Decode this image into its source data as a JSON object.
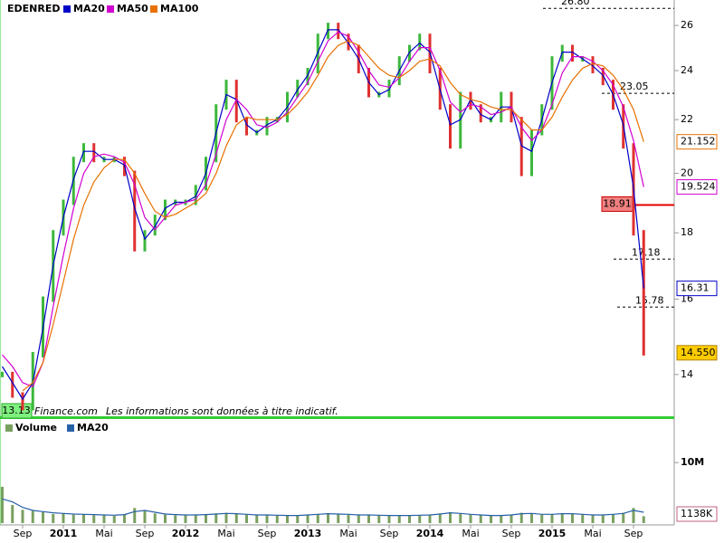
{
  "chart_data": [
    {
      "type": "line",
      "log_scale": true,
      "ylim": [
        13,
        27.2
      ],
      "yticks": [
        14,
        16,
        18,
        20,
        22,
        24,
        26
      ],
      "series": [
        {
          "name": "EDENRED",
          "color": "#3cb83c",
          "down_color": "#e03030",
          "style": "bars",
          "last_label": "14.550",
          "values": [
            14,
            13.5,
            13.2,
            14.5,
            16,
            18,
            19,
            20.5,
            21,
            20.5,
            20.5,
            20.5,
            20,
            17.5,
            18,
            18.5,
            19,
            19,
            19,
            19.5,
            20.5,
            22.5,
            23.5,
            22,
            21.5,
            21.5,
            22,
            22,
            23,
            23.5,
            24,
            25.5,
            26,
            25.5,
            25,
            24,
            23,
            23,
            23.5,
            24.5,
            25,
            25.5,
            24,
            22.5,
            21,
            23,
            22.5,
            22,
            22,
            23,
            22,
            20,
            21.5,
            22.5,
            24.5,
            25,
            24.5,
            24.5,
            24,
            23.5,
            22.5,
            21,
            18,
            14.55
          ]
        },
        {
          "name": "MA20",
          "color": "#0000c8",
          "values": [
            14.2,
            13.8,
            13.4,
            13.8,
            15.2,
            17,
            18.5,
            19.8,
            20.8,
            20.8,
            20.5,
            20.5,
            20.3,
            18.8,
            17.8,
            18.2,
            18.8,
            19,
            19,
            19.2,
            20,
            21.5,
            23,
            22.8,
            21.8,
            21.5,
            21.8,
            22,
            22.5,
            23.2,
            23.8,
            24.8,
            25.8,
            25.8,
            25.2,
            24.5,
            23.5,
            23,
            23.2,
            24,
            24.8,
            25.2,
            24.8,
            23.2,
            21.8,
            22,
            22.8,
            22.2,
            22,
            22.5,
            22.5,
            21,
            20.8,
            22,
            23.5,
            24.8,
            24.8,
            24.5,
            24.2,
            23.8,
            23,
            21.8,
            19.5,
            16.31
          ]
        },
        {
          "name": "MA50",
          "color": "#d000d0",
          "values": [
            14.5,
            14.2,
            13.8,
            13.7,
            14.3,
            15.8,
            17.3,
            18.8,
            20,
            20.6,
            20.7,
            20.6,
            20.4,
            19.6,
            18.5,
            18.1,
            18.5,
            18.9,
            19,
            19.1,
            19.6,
            20.7,
            22,
            22.8,
            22.4,
            21.8,
            21.7,
            21.9,
            22.3,
            22.9,
            23.5,
            24.4,
            25.3,
            25.7,
            25.5,
            24.8,
            24,
            23.4,
            23.3,
            23.7,
            24.4,
            25,
            25,
            24,
            22.7,
            22.3,
            22.6,
            22.5,
            22.2,
            22.3,
            22.5,
            21.7,
            21.2,
            21.6,
            22.6,
            23.9,
            24.6,
            24.6,
            24.4,
            24,
            23.4,
            22.5,
            21.2,
            19.524
          ]
        },
        {
          "name": "MA100",
          "color": "#e87000",
          "values": [
            null,
            null,
            13.6,
            13.8,
            14.3,
            15.3,
            16.5,
            17.8,
            18.9,
            19.7,
            20.2,
            20.5,
            20.5,
            20,
            19.3,
            18.7,
            18.5,
            18.6,
            18.8,
            19,
            19.3,
            20,
            21,
            21.8,
            22.1,
            22,
            22,
            22,
            22.2,
            22.6,
            23.1,
            23.8,
            24.6,
            25.1,
            25.3,
            25.1,
            24.6,
            24.1,
            23.8,
            23.7,
            24,
            24.4,
            24.5,
            24.2,
            23.5,
            23,
            22.8,
            22.7,
            22.5,
            22.4,
            22.4,
            22,
            21.6,
            21.6,
            22.1,
            22.9,
            23.6,
            24.1,
            24.3,
            24.2,
            23.8,
            23.2,
            22.4,
            21.152
          ]
        }
      ],
      "levels": [
        {
          "value": 26.8,
          "label": "26.80"
        },
        23.05,
        17.18,
        15.78
      ],
      "support_line": 18.91,
      "min_label": 13.13,
      "source": "Finance.com",
      "notice": "Les informations sont données à titre indicatif."
    },
    {
      "type": "bar",
      "ylim": [
        0,
        16900000
      ],
      "yticks": [
        {
          "value": 10000000,
          "label": "10M"
        }
      ],
      "categories": [
        null,
        null,
        "Sep",
        null,
        null,
        null,
        "2011",
        null,
        null,
        null,
        "Mai",
        null,
        null,
        null,
        "Sep",
        null,
        null,
        null,
        "2012",
        null,
        null,
        null,
        "Mai",
        null,
        null,
        null,
        "Sep",
        null,
        null,
        null,
        "2013",
        null,
        null,
        null,
        "Mai",
        null,
        null,
        null,
        "Sep",
        null,
        null,
        null,
        "2014",
        null,
        null,
        null,
        "Mai",
        null,
        null,
        null,
        "Sep",
        null,
        null,
        null,
        "2015",
        null,
        null,
        null,
        "Mai",
        null,
        null,
        null,
        "Sep",
        null
      ],
      "series": [
        {
          "name": "Volume",
          "color": "#7aa060",
          "last_label": "1138K",
          "values": [
            6000000,
            3000000,
            2200000,
            2000000,
            1800000,
            1500000,
            1600000,
            1400000,
            1500000,
            1300000,
            1400000,
            1200000,
            1500000,
            2500000,
            2000000,
            1600000,
            1400000,
            1300000,
            1400000,
            1300000,
            1500000,
            1600000,
            1700000,
            1500000,
            1400000,
            1300000,
            1400000,
            1300000,
            1200000,
            1300000,
            1400000,
            1500000,
            1600000,
            1500000,
            1400000,
            1300000,
            1400000,
            1300000,
            1200000,
            1300000,
            1200000,
            1300000,
            1400000,
            1600000,
            1800000,
            1500000,
            1400000,
            1300000,
            1200000,
            1300000,
            1400000,
            1700000,
            1500000,
            1400000,
            1500000,
            1600000,
            1500000,
            1400000,
            1300000,
            1400000,
            1500000,
            1700000,
            2500000,
            1138000
          ]
        },
        {
          "name": "MA20",
          "color": "#2860a8",
          "values": [
            4000000,
            3500000,
            2600000,
            2100000,
            1900000,
            1700000,
            1600000,
            1500000,
            1450000,
            1400000,
            1350000,
            1300000,
            1400000,
            1900000,
            2100000,
            1800000,
            1500000,
            1400000,
            1350000,
            1350000,
            1400000,
            1500000,
            1600000,
            1550000,
            1450000,
            1350000,
            1350000,
            1300000,
            1250000,
            1250000,
            1350000,
            1450000,
            1550000,
            1500000,
            1450000,
            1350000,
            1350000,
            1300000,
            1250000,
            1250000,
            1250000,
            1300000,
            1350000,
            1500000,
            1700000,
            1600000,
            1450000,
            1350000,
            1250000,
            1250000,
            1350000,
            1550000,
            1600000,
            1450000,
            1450000,
            1550000,
            1550000,
            1450000,
            1350000,
            1350000,
            1450000,
            1600000,
            2100000,
            1800000
          ]
        }
      ]
    }
  ]
}
